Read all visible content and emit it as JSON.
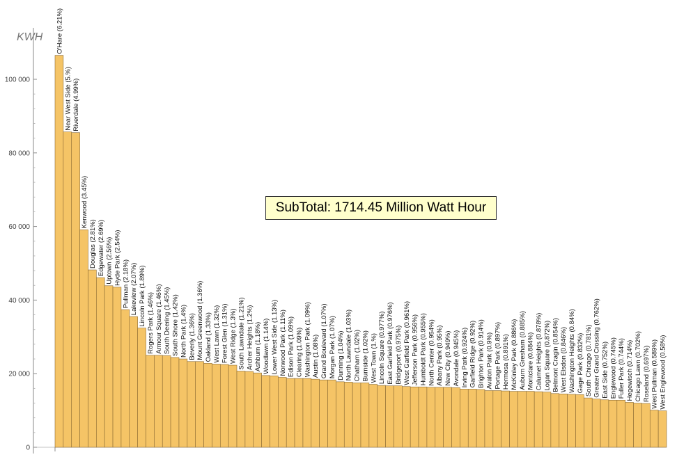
{
  "annotation": {
    "text": "SubTotal: 1714.45 Million Watt Hour"
  },
  "chart_data": {
    "type": "bar",
    "ylabel": "KWH",
    "ylim": [
      0,
      110000
    ],
    "yticks": [
      0,
      20000,
      40000,
      60000,
      80000,
      100000
    ],
    "ytick_labels": [
      "0",
      "20 000",
      "40 000",
      "60 000",
      "80 000",
      "100 000"
    ],
    "grid": false,
    "bar_color": "#f5c466",
    "bar_edge_color": "#8a6a33",
    "categories": [
      "O'Hare (6.21%)",
      "Near West Side (5.%)",
      "Riverdale (4.99%)",
      "Kenwood (3.45%)",
      "Douglas (2.81%)",
      "Edgewater (2.69%)",
      "Uptown (2.56%)",
      "Hyde Park (2.54%)",
      "Pullman (2.18%)",
      "Lakeview (2.07%)",
      "Lincoln Park (1.89%)",
      "Rogers Park (1.46%)",
      "Armour Square (1.46%)",
      "South Deering (1.45%)",
      "South Shore (1.42%)",
      "North Park (1.4%)",
      "Beverly (1.36%)",
      "Mount Greenwood (1.36%)",
      "Oakland (1.33%)",
      "West Lawn (1.32%)",
      "Forest Glen (1.31%)",
      "West Ridge (1.3%)",
      "South Lawndale (1.21%)",
      "Archer Heights (1.2%)",
      "Ashburn (1.18%)",
      "Woodlawn (1.14%)",
      "Lower West Side (1.13%)",
      "Norwood Park (1.11%)",
      "Edison Park (1.09%)",
      "Clearing (1.09%)",
      "Washington Park (1.09%)",
      "Austin (1.08%)",
      "Grand Boulevard (1.07%)",
      "Morgan Park (1.07%)",
      "Dunning (1.04%)",
      "North Lawndale (1.03%)",
      "Chatham (1.02%)",
      "Burnside (1.02%)",
      "West Town (1.%)",
      "Lincoln Square (0.977%)",
      "East Garfield Park (0.976%)",
      "Bridgeport (0.975%)",
      "West Garfield Park (0.961%)",
      "Jefferson Park (0.956%)",
      "Humboldt Park (0.955%)",
      "North Center (0.954%)",
      "Albany Park (0.95%)",
      "New City (0.949%)",
      "Avondale (0.945%)",
      "Irving Park (0.924%)",
      "Garfield Ridge (0.92%)",
      "Brighton Park (0.914%)",
      "Avalon Park (0.9%)",
      "Portage Park (0.897%)",
      "Hermosa (0.891%)",
      "McKinley Park (0.886%)",
      "Auburn Gresham (0.885%)",
      "Montclare (0.884%)",
      "Calumet Heights (0.878%)",
      "Logan Square (0.872%)",
      "Belmont Cragin (0.854%)",
      "West Elsdon (0.846%)",
      "Washington Heights (0.84%)",
      "Gage Park (0.832%)",
      "South Chicago (0.781%)",
      "Greater Grand Crossing (0.762%)",
      "East Side (0.752%)",
      "Englewood (0.745%)",
      "Fuller Park (0.744%)",
      "Hegewisch (0.714%)",
      "Chicago Lawn (0.702%)",
      "Roseland (0.697%)",
      "West Pullman (0.589%)",
      "West Englewood (0.58%)"
    ],
    "values": [
      106500,
      85700,
      85500,
      59100,
      48200,
      46100,
      43900,
      43500,
      37400,
      35500,
      32400,
      25000,
      25000,
      24900,
      24400,
      24000,
      23300,
      23300,
      22800,
      22600,
      22500,
      22300,
      20700,
      20600,
      20200,
      19500,
      19400,
      19000,
      18700,
      18700,
      18700,
      18500,
      18300,
      18300,
      17800,
      17700,
      17500,
      17500,
      17100,
      16800,
      16700,
      16700,
      16500,
      16400,
      16400,
      16300,
      16300,
      16300,
      16200,
      15800,
      15800,
      15700,
      15400,
      15400,
      15300,
      15200,
      15200,
      15200,
      15100,
      15000,
      14600,
      14500,
      14400,
      14300,
      13400,
      13100,
      12900,
      12800,
      12800,
      12200,
      12000,
      11900,
      10100,
      9900
    ]
  }
}
